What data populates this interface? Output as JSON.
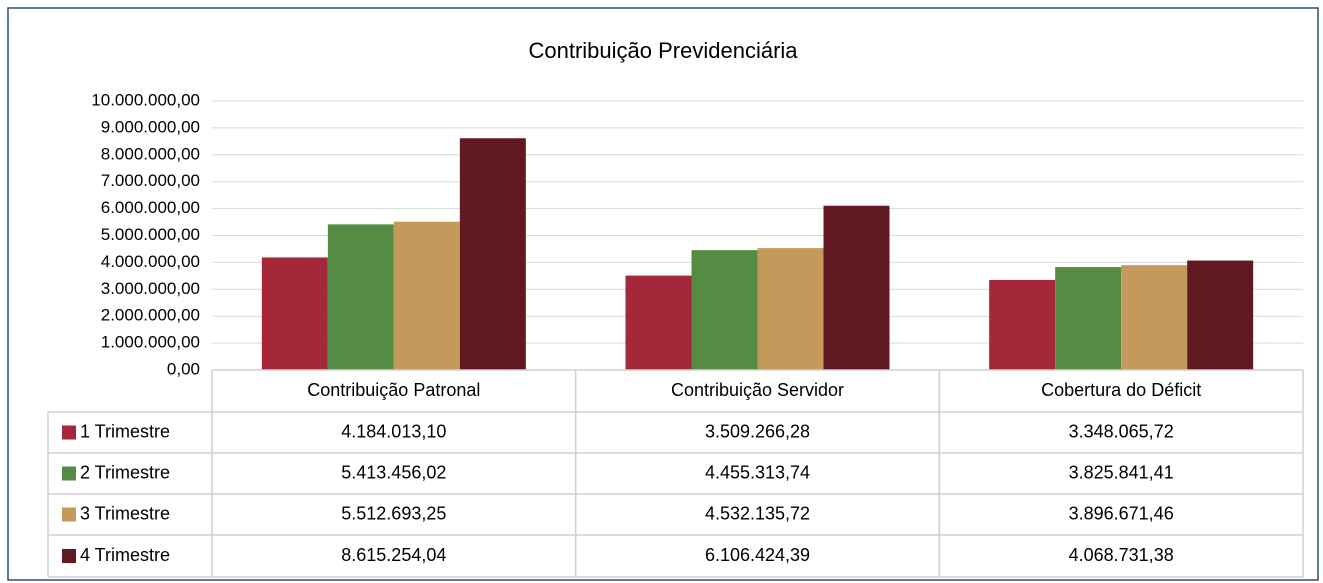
{
  "chart_data": {
    "type": "bar",
    "title": "Contribuição Previdenciária",
    "categories": [
      "Contribuição Patronal",
      "Contribuição Servidor",
      "Cobertura do Déficit"
    ],
    "series": [
      {
        "name": "1 Trimestre",
        "color": "#a4283a",
        "values": [
          4184013.1,
          3509266.28,
          3348065.72
        ],
        "value_labels": [
          "4.184.013,10",
          "3.509.266,28",
          "3.348.065,72"
        ]
      },
      {
        "name": "2 Trimestre",
        "color": "#548c44",
        "values": [
          5413456.02,
          4455313.74,
          3825841.41
        ],
        "value_labels": [
          "5.413.456,02",
          "4.455.313,74",
          "3.825.841,41"
        ]
      },
      {
        "name": "3 Trimestre",
        "color": "#c49a5c",
        "values": [
          5512693.25,
          4532135.72,
          3896671.46
        ],
        "value_labels": [
          "5.512.693,25",
          "4.532.135,72",
          "3.896.671,46"
        ]
      },
      {
        "name": "4 Trimestre",
        "color": "#611a22",
        "values": [
          8615254.04,
          6106424.39,
          4068731.38
        ],
        "value_labels": [
          "8.615.254,04",
          "6.106.424,39",
          "4.068.731,38"
        ]
      }
    ],
    "ylim": [
      0,
      10000000
    ],
    "yticks": [
      {
        "value": 0,
        "label": "0,00"
      },
      {
        "value": 1000000,
        "label": "1.000.000,00"
      },
      {
        "value": 2000000,
        "label": "2.000.000,00"
      },
      {
        "value": 3000000,
        "label": "3.000.000,00"
      },
      {
        "value": 4000000,
        "label": "4.000.000,00"
      },
      {
        "value": 5000000,
        "label": "5.000.000,00"
      },
      {
        "value": 6000000,
        "label": "6.000.000,00"
      },
      {
        "value": 7000000,
        "label": "7.000.000,00"
      },
      {
        "value": 8000000,
        "label": "8.000.000,00"
      },
      {
        "value": 9000000,
        "label": "9.000.000,00"
      },
      {
        "value": 10000000,
        "label": "10.000.000,00"
      }
    ],
    "grid": true
  }
}
